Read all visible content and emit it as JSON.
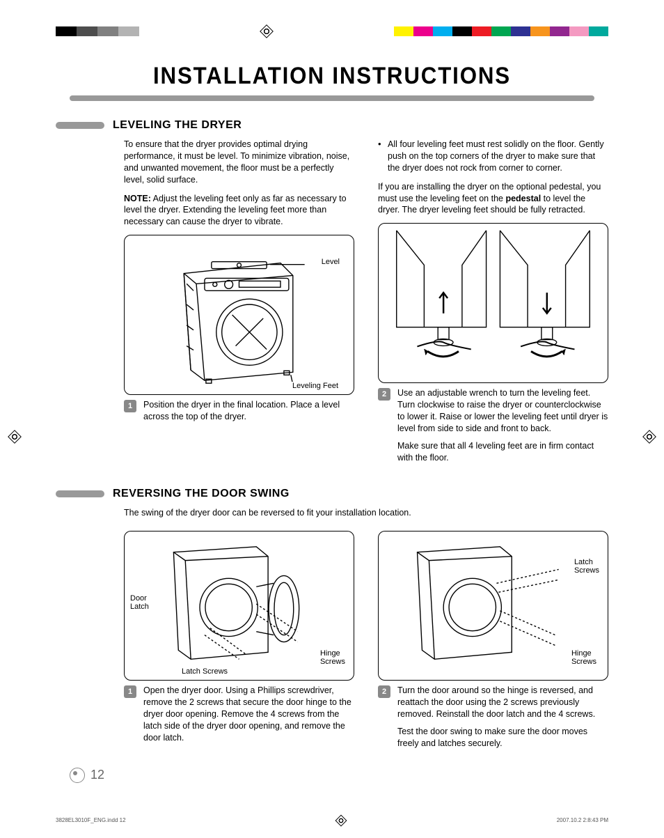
{
  "doc": {
    "title": "INSTALLATION INSTRUCTIONS",
    "page_number": "12",
    "slug_left": "3828EL3010F_ENG.indd   12",
    "slug_right": "2007.10.2   2:8:43 PM"
  },
  "reg_colors_left": [
    "#000000",
    "#4d4d4d",
    "#808080",
    "#b3b3b3"
  ],
  "reg_colors_right": [
    "#fff200",
    "#ec008c",
    "#00aeef",
    "#000000",
    "#ed1c24",
    "#00a651",
    "#2e3192",
    "#f7941d",
    "#92278f",
    "#f49ac1",
    "#00a99d"
  ],
  "section1": {
    "title": "LEVELING THE DRYER",
    "left": {
      "p1": "To ensure that the dryer provides optimal drying performance, it must be level. To minimize vibration, noise, and unwanted movement, the floor must be a perfectly level, solid surface.",
      "note_label": "NOTE:",
      "note_text": " Adjust the leveling feet only as far as necessary to level the dryer. Extending the leveling feet more than necessary can cause the dryer to vibrate.",
      "fig_label_level": "Level",
      "fig_label_feet": "Leveling Feet",
      "step_num": "1",
      "step_text": "Position the dryer in the final location. Place a level across the top of the dryer."
    },
    "right": {
      "bullet": "All four leveling feet must rest solidly on the floor. Gently push on the top corners of the dryer to make sure that the dryer does not rock from corner to corner.",
      "p2a": "If you are installing the dryer on the optional pedestal, you must use the leveling feet on the ",
      "p2_bold": "pedestal",
      "p2b": " to level the dryer. The dryer leveling feet should be fully retracted.",
      "step_num": "2",
      "step_text_1": "Use an adjustable wrench to turn the leveling feet. Turn clockwise to raise the dryer or counterclockwise to lower it. Raise or lower the leveling feet until dryer is level from side to side and front to back.",
      "step_text_2": "Make sure that all 4 leveling feet are in firm contact with the floor."
    }
  },
  "section2": {
    "title": "REVERSING THE DOOR SWING",
    "intro": "The swing of the dryer door can be reversed to fit your installation location.",
    "left": {
      "fig_label_door_latch": "Door\nLatch",
      "fig_label_latch_screws": "Latch Screws",
      "fig_label_hinge_screws": "Hinge\nScrews",
      "step_num": "1",
      "step_text": "Open the dryer door. Using a Phillips screwdriver, remove the 2 screws that secure the door hinge to the dryer door opening. Remove the 4 screws from the latch side of the dryer door opening, and remove the door latch."
    },
    "right": {
      "fig_label_latch_screws": "Latch\nScrews",
      "fig_label_hinge_screws": "Hinge\nScrews",
      "step_num": "2",
      "step_text_1": "Turn the door around so the hinge is reversed, and reattach the door using the 2 screws previously removed. Reinstall the door latch and the 4 screws.",
      "step_text_2": "Test the door swing to make sure the door moves freely and latches securely."
    }
  },
  "colors": {
    "pill": "#999999",
    "step_badge": "#888888",
    "text": "#000000",
    "page_num": "#666666"
  }
}
